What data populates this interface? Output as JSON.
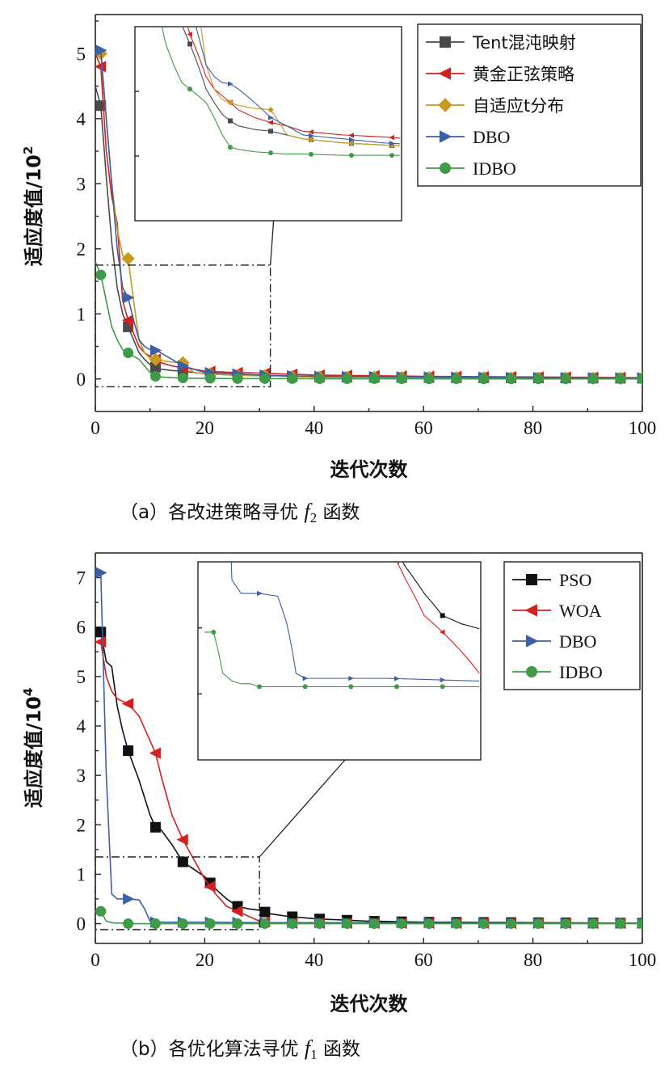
{
  "chart_data": [
    {
      "type": "line",
      "caption": "（a）各改进策略寻优",
      "caption_func": "f",
      "caption_sub": "2",
      "caption_tail": "函数",
      "xlabel": "迭代次数",
      "ylabel": "适应度值/10",
      "ylabel_exp": "2",
      "xlim": [
        0,
        100
      ],
      "ylim": [
        -0.5,
        5.6
      ],
      "xticks": [
        "0",
        "20",
        "40",
        "60",
        "80",
        "100"
      ],
      "yticks": [
        "0",
        "1",
        "2",
        "3",
        "4",
        "5"
      ],
      "legend_position": "top-right",
      "inset": "zoom of iterations 0–32, fitness -0.12–1.75",
      "series": [
        {
          "name": "Tent混沌映射",
          "color": "#4a4a4a",
          "marker": "square",
          "x": [
            0,
            1,
            2,
            3,
            4,
            5,
            6,
            7,
            8,
            9,
            10,
            11,
            12,
            14,
            16,
            18,
            20,
            25,
            30,
            40,
            60,
            80,
            100
          ],
          "y": [
            4.5,
            4.2,
            3.1,
            2.1,
            1.4,
            1.0,
            0.8,
            0.6,
            0.4,
            0.3,
            0.22,
            0.18,
            0.15,
            0.13,
            0.12,
            0.1,
            0.08,
            0.06,
            0.05,
            0.03,
            0.02,
            0.015,
            0.01
          ],
          "markers_x": [
            1,
            6,
            11,
            16,
            21,
            26,
            31,
            36,
            41,
            46,
            51,
            56,
            61,
            66,
            71,
            76,
            81,
            86,
            91,
            96,
            100
          ]
        },
        {
          "name": "黄金正弦策略",
          "color": "#d42020",
          "marker": "triangle-left",
          "x": [
            0,
            1,
            2,
            3,
            4,
            5,
            6,
            7,
            8,
            9,
            10,
            11,
            12,
            14,
            16,
            18,
            20,
            25,
            30,
            40,
            60,
            80,
            100
          ],
          "y": [
            5.0,
            4.8,
            3.5,
            2.8,
            2.4,
            1.2,
            0.9,
            0.7,
            0.5,
            0.4,
            0.35,
            0.3,
            0.25,
            0.2,
            0.17,
            0.15,
            0.12,
            0.1,
            0.09,
            0.06,
            0.04,
            0.03,
            0.02
          ],
          "markers_x": [
            1,
            6,
            11,
            16,
            21,
            26,
            31,
            36,
            41,
            46,
            51,
            56,
            61,
            66,
            71,
            76,
            81,
            86,
            91,
            96,
            100
          ]
        },
        {
          "name": "自适应t分布",
          "color": "#c59a1f",
          "marker": "diamond",
          "x": [
            0,
            1,
            2,
            3,
            4,
            5,
            6,
            7,
            8,
            9,
            10,
            11,
            12,
            14,
            16,
            18,
            20,
            25,
            30,
            40,
            60,
            80,
            100
          ],
          "y": [
            5.0,
            5.0,
            4.0,
            3.0,
            2.3,
            1.9,
            1.85,
            1.2,
            0.6,
            0.4,
            0.32,
            0.3,
            0.28,
            0.26,
            0.25,
            0.1,
            0.08,
            0.06,
            0.05,
            0.03,
            0.02,
            0.015,
            0.01
          ],
          "markers_x": [
            1,
            6,
            11,
            16,
            21,
            26,
            31,
            36,
            41,
            46,
            51,
            56,
            61,
            66,
            71,
            76,
            81,
            86,
            91,
            96,
            100
          ]
        },
        {
          "name": "DBO",
          "color": "#3d5fa5",
          "marker": "triangle-right",
          "x": [
            0,
            1,
            2,
            3,
            4,
            5,
            6,
            7,
            8,
            9,
            10,
            11,
            12,
            14,
            16,
            18,
            20,
            25,
            30,
            40,
            60,
            80,
            100
          ],
          "y": [
            5.1,
            5.05,
            4.0,
            3.0,
            2.0,
            1.4,
            1.25,
            0.9,
            0.6,
            0.5,
            0.45,
            0.44,
            0.4,
            0.3,
            0.2,
            0.15,
            0.1,
            0.08,
            0.06,
            0.04,
            0.03,
            0.02,
            0.015
          ],
          "markers_x": [
            1,
            6,
            11,
            16,
            21,
            26,
            31,
            36,
            41,
            46,
            51,
            56,
            61,
            66,
            71,
            76,
            81,
            86,
            91,
            96,
            100
          ]
        },
        {
          "name": "IDBO",
          "color": "#3f9a4a",
          "marker": "circle",
          "x": [
            0,
            1,
            2,
            3,
            4,
            5,
            6,
            7,
            8,
            9,
            10,
            11,
            12,
            14,
            16,
            18,
            20,
            25,
            30,
            40,
            60,
            80,
            100
          ],
          "y": [
            1.8,
            1.6,
            1.2,
            0.8,
            0.6,
            0.45,
            0.4,
            0.35,
            0.3,
            0.2,
            0.1,
            0.04,
            0.03,
            0.02,
            0.015,
            0.01,
            0.01,
            0.005,
            0.005,
            0.003,
            0.002,
            0.001,
            0.001
          ],
          "markers_x": [
            1,
            6,
            11,
            16,
            21,
            26,
            31,
            36,
            41,
            46,
            51,
            56,
            61,
            66,
            71,
            76,
            81,
            86,
            91,
            96,
            100
          ]
        }
      ]
    },
    {
      "type": "line",
      "caption": "（b）各优化算法寻优",
      "caption_func": "f",
      "caption_sub": "1",
      "caption_tail": "函数",
      "xlabel": "迭代次数",
      "ylabel": "适应度值/10",
      "ylabel_exp": "4",
      "xlim": [
        0,
        100
      ],
      "ylim": [
        -0.4,
        7.5
      ],
      "xticks": [
        "0",
        "20",
        "40",
        "60",
        "80",
        "100"
      ],
      "yticks": [
        "0",
        "1",
        "2",
        "3",
        "4",
        "5",
        "6",
        "7"
      ],
      "legend_position": "top-right",
      "inset": "zoom of iterations 0–30, fitness -0.12–1.35",
      "series": [
        {
          "name": "PSO",
          "color": "#111111",
          "marker": "square",
          "x": [
            0,
            1,
            2,
            3,
            4,
            5,
            6,
            8,
            10,
            11,
            12,
            14,
            16,
            18,
            20,
            22,
            24,
            26,
            28,
            30,
            32,
            35,
            40,
            50,
            60,
            80,
            100
          ],
          "y": [
            5.9,
            5.9,
            5.3,
            5.2,
            4.4,
            3.9,
            3.5,
            2.9,
            2.2,
            1.95,
            1.9,
            1.6,
            1.25,
            1.1,
            0.95,
            0.7,
            0.5,
            0.35,
            0.3,
            0.27,
            0.2,
            0.15,
            0.1,
            0.05,
            0.03,
            0.02,
            0.01
          ],
          "markers_x": [
            1,
            6,
            11,
            16,
            21,
            26,
            31,
            36,
            41,
            46,
            51,
            56,
            61,
            66,
            71,
            76,
            81,
            86,
            91,
            96,
            100
          ]
        },
        {
          "name": "WOA",
          "color": "#d42020",
          "marker": "triangle-left",
          "x": [
            0,
            1,
            2,
            3,
            4,
            5,
            6,
            8,
            10,
            11,
            12,
            14,
            16,
            18,
            20,
            22,
            24,
            26,
            28,
            30,
            32,
            35,
            40,
            50,
            60,
            80,
            100
          ],
          "y": [
            5.7,
            5.7,
            5.0,
            4.7,
            4.55,
            4.5,
            4.45,
            4.2,
            3.7,
            3.45,
            3.0,
            2.2,
            1.7,
            1.3,
            0.9,
            0.6,
            0.35,
            0.25,
            0.15,
            0.05,
            0.02,
            0.01,
            0.01,
            0.01,
            0.01,
            0.01,
            0.01
          ],
          "markers_x": [
            1,
            6,
            11,
            16,
            21,
            26,
            31,
            36,
            41,
            46,
            51,
            56,
            61,
            66,
            71,
            76,
            81,
            86,
            91,
            96,
            100
          ]
        },
        {
          "name": "DBO",
          "color": "#3d5fa5",
          "marker": "triangle-right",
          "x": [
            0,
            1,
            2,
            3,
            4,
            5,
            6,
            8,
            9,
            10,
            11,
            12,
            14,
            16,
            20,
            30,
            40,
            60,
            80,
            100
          ],
          "y": [
            7.1,
            7.1,
            3.0,
            0.6,
            0.5,
            0.5,
            0.5,
            0.48,
            0.3,
            0.05,
            0.03,
            0.03,
            0.03,
            0.03,
            0.03,
            0.02,
            0.02,
            0.02,
            0.01,
            0.01
          ],
          "markers_x": [
            1,
            6,
            11,
            16,
            21,
            26,
            31,
            36,
            41,
            46,
            51,
            56,
            61,
            66,
            71,
            76,
            81,
            86,
            91,
            96,
            100
          ]
        },
        {
          "name": "IDBO",
          "color": "#3f9a4a",
          "marker": "circle",
          "x": [
            0,
            1,
            2,
            3,
            4,
            5,
            6,
            8,
            10,
            20,
            40,
            60,
            80,
            100
          ],
          "y": [
            0.25,
            0.25,
            0.05,
            0.02,
            0.01,
            0.01,
            0.0,
            0.0,
            0.0,
            0.0,
            0.0,
            0.0,
            0.0,
            0.0
          ],
          "markers_x": [
            1,
            6,
            11,
            16,
            21,
            26,
            31,
            36,
            41,
            46,
            51,
            56,
            61,
            66,
            71,
            76,
            81,
            86,
            91,
            96,
            100
          ]
        }
      ]
    }
  ]
}
